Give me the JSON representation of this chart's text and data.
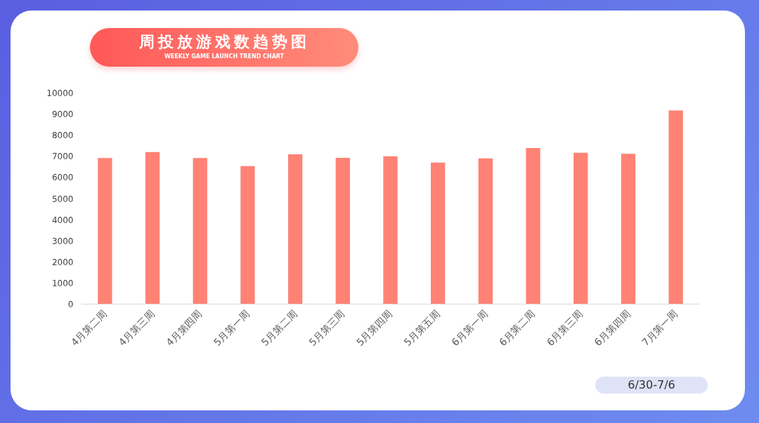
{
  "chart_data": {
    "type": "bar",
    "title": "周投放游戏数趋势图",
    "subtitle": "WEEKLY GAME LAUNCH TREND CHART",
    "categories": [
      "4月第二周",
      "4月第三周",
      "4月第四周",
      "5月第一周",
      "5月第二周",
      "5月第三周",
      "5月第四周",
      "5月第五周",
      "6月第一周",
      "6月第二周",
      "6月第三周",
      "6月第四周",
      "7月第一周"
    ],
    "values": [
      6920,
      7200,
      6920,
      6540,
      7090,
      6930,
      7000,
      6700,
      6900,
      7390,
      7170,
      7120,
      9170
    ],
    "color": "#ff8275",
    "ylim": [
      0,
      10000
    ],
    "yticks": [
      0,
      1000,
      2000,
      3000,
      4000,
      5000,
      6000,
      7000,
      8000,
      9000,
      10000
    ],
    "annotations": [
      "6/30-7/6"
    ]
  }
}
